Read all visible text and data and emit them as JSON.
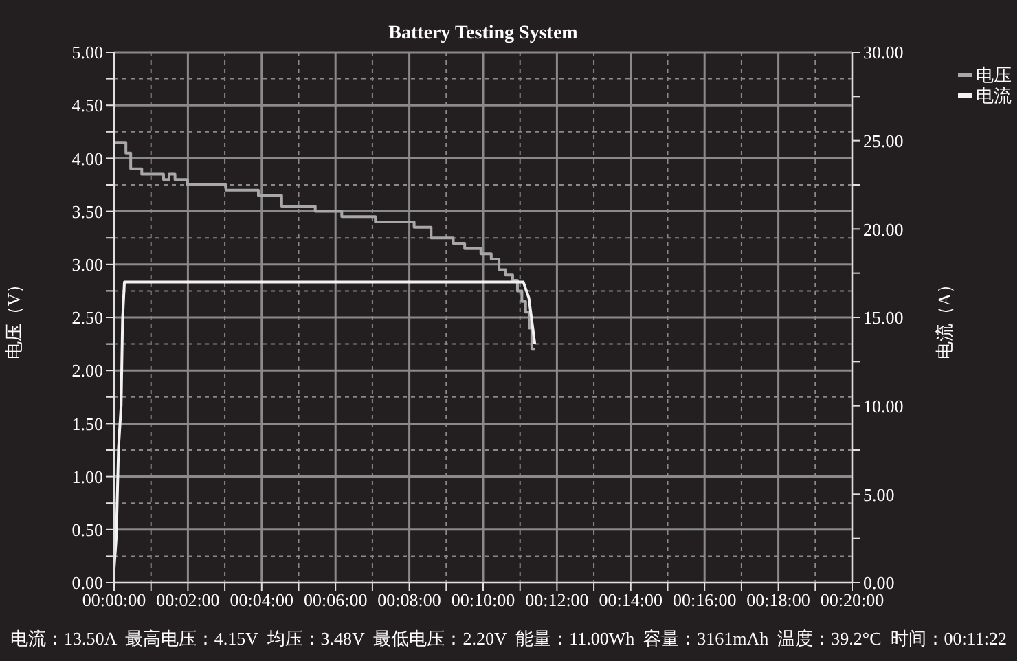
{
  "chart_data": {
    "type": "line",
    "title": "Battery Testing System",
    "ylabel": "电压（V）",
    "y2label": "电流（A）",
    "annotations": [
      "电流：13.50A  最高电压：4.15V  均压：3.48V  最低电压：2.20V  能量：11.00Wh  容量：3161mAh  温度：39.2°C  时间：00:11:22"
    ],
    "xlim": [
      0,
      20
    ],
    "xticks": [
      {
        "value": 0,
        "label": "00:00:00"
      },
      {
        "value": 1,
        "label": null
      },
      {
        "value": 2,
        "label": "00:02:00"
      },
      {
        "value": 3,
        "label": null
      },
      {
        "value": 4,
        "label": "00:04:00"
      },
      {
        "value": 5,
        "label": null
      },
      {
        "value": 6,
        "label": "00:06:00"
      },
      {
        "value": 7,
        "label": null
      },
      {
        "value": 8,
        "label": "00:08:00"
      },
      {
        "value": 9,
        "label": null
      },
      {
        "value": 10,
        "label": "00:10:00"
      },
      {
        "value": 11,
        "label": null
      },
      {
        "value": 12,
        "label": "00:12:00"
      },
      {
        "value": 13,
        "label": null
      },
      {
        "value": 14,
        "label": "00:14:00"
      },
      {
        "value": 15,
        "label": null
      },
      {
        "value": 16,
        "label": "00:16:00"
      },
      {
        "value": 17,
        "label": null
      },
      {
        "value": 18,
        "label": "00:18:00"
      },
      {
        "value": 19,
        "label": null
      },
      {
        "value": 20,
        "label": "00:20:00"
      }
    ],
    "ylim": [
      0,
      5
    ],
    "yticks": [
      {
        "value": 0,
        "label": "0.00"
      },
      {
        "value": 0.25,
        "label": null
      },
      {
        "value": 0.5,
        "label": "0.50"
      },
      {
        "value": 0.75,
        "label": null
      },
      {
        "value": 1,
        "label": "1.00"
      },
      {
        "value": 1.25,
        "label": null
      },
      {
        "value": 1.5,
        "label": "1.50"
      },
      {
        "value": 1.75,
        "label": null
      },
      {
        "value": 2,
        "label": "2.00"
      },
      {
        "value": 2.25,
        "label": null
      },
      {
        "value": 2.5,
        "label": "2.50"
      },
      {
        "value": 2.75,
        "label": null
      },
      {
        "value": 3,
        "label": "3.00"
      },
      {
        "value": 3.25,
        "label": null
      },
      {
        "value": 3.5,
        "label": "3.50"
      },
      {
        "value": 3.75,
        "label": null
      },
      {
        "value": 4,
        "label": "4.00"
      },
      {
        "value": 4.25,
        "label": null
      },
      {
        "value": 4.5,
        "label": "4.50"
      },
      {
        "value": 4.75,
        "label": null
      },
      {
        "value": 5,
        "label": "5.00"
      }
    ],
    "y2lim": [
      0,
      30
    ],
    "y2ticks": [
      {
        "value": 0,
        "label": "0.00"
      },
      {
        "value": 2.5,
        "label": null
      },
      {
        "value": 5,
        "label": "5.00"
      },
      {
        "value": 7.5,
        "label": null
      },
      {
        "value": 10,
        "label": "10.00"
      },
      {
        "value": 12.5,
        "label": null
      },
      {
        "value": 15,
        "label": "15.00"
      },
      {
        "value": 17.5,
        "label": null
      },
      {
        "value": 20,
        "label": "20.00"
      },
      {
        "value": 22.5,
        "label": null
      },
      {
        "value": 25,
        "label": "25.00"
      },
      {
        "value": 27.5,
        "label": null
      },
      {
        "value": 30,
        "label": "30.00"
      }
    ],
    "grid": true,
    "legend": "top right",
    "marker": "none",
    "line_style": "solid",
    "series": [
      {
        "name": "电压",
        "type": "step",
        "color": "#a8a8a8",
        "x": [
          0,
          0.32,
          0.45,
          0.75,
          1.34,
          1.49,
          1.65,
          1.99,
          3.03,
          3.91,
          4.54,
          5.45,
          6.17,
          7.08,
          8.13,
          8.59,
          9.19,
          9.5,
          9.94,
          10.22,
          10.43,
          10.61,
          10.8,
          10.93,
          11.05,
          11.15,
          11.25,
          11.32,
          11.4
        ],
        "values": [
          4.15,
          4.05,
          3.9,
          3.85,
          3.8,
          3.85,
          3.8,
          3.75,
          3.7,
          3.65,
          3.55,
          3.5,
          3.45,
          3.4,
          3.35,
          3.25,
          3.2,
          3.15,
          3.1,
          3.05,
          2.95,
          2.9,
          2.85,
          2.75,
          2.65,
          2.55,
          2.4,
          2.2,
          2.2
        ]
      },
      {
        "name": "电流",
        "type": "line",
        "axis": "y2",
        "color": "#f2f2f2",
        "x": [
          0,
          0.06,
          0.12,
          0.19,
          0.23,
          0.28,
          11.09,
          11.24,
          11.4
        ],
        "values": [
          0.8,
          2.6,
          7.6,
          10,
          14.9,
          17,
          17,
          16.1,
          13.5
        ]
      }
    ]
  }
}
